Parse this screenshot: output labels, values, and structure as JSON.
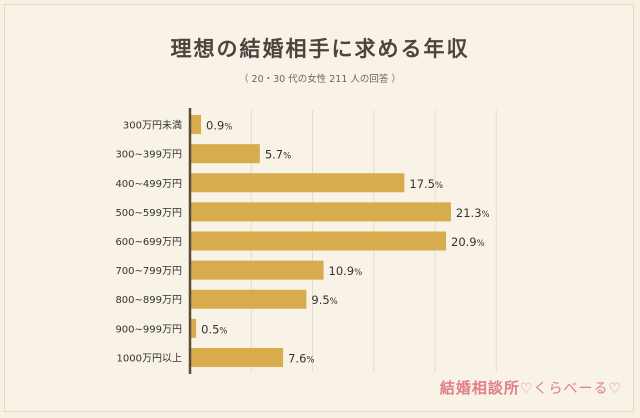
{
  "title": "理想の結婚相手に求める年収",
  "subtitle": "（ 20・30 代の女性 211 人の回答 ）",
  "brand": {
    "name": "結婚相談所",
    "sub": "♡くらべーる♡"
  },
  "colors": {
    "bar": "#d8ab4c",
    "axis": "#5a4a3a",
    "grid": "#e3ddcc",
    "text": "#333333"
  },
  "chart_data": {
    "type": "bar",
    "orientation": "horizontal",
    "title": "理想の結婚相手に求める年収",
    "categories": [
      "300万円未満",
      "300~399万円",
      "400~499万円",
      "500~599万円",
      "600~699万円",
      "700~799万円",
      "800~899万円",
      "900~999万円",
      "1000万円以上"
    ],
    "values": [
      0.9,
      5.7,
      17.5,
      21.3,
      20.9,
      10.9,
      9.5,
      0.5,
      7.6
    ],
    "value_labels": [
      "0.9",
      "5.7",
      "17.5",
      "21.3",
      "20.9",
      "10.9",
      "9.5",
      "0.5",
      "7.6"
    ],
    "unit": "%",
    "xlim": [
      0,
      25
    ],
    "grid": true,
    "legend": "none"
  }
}
